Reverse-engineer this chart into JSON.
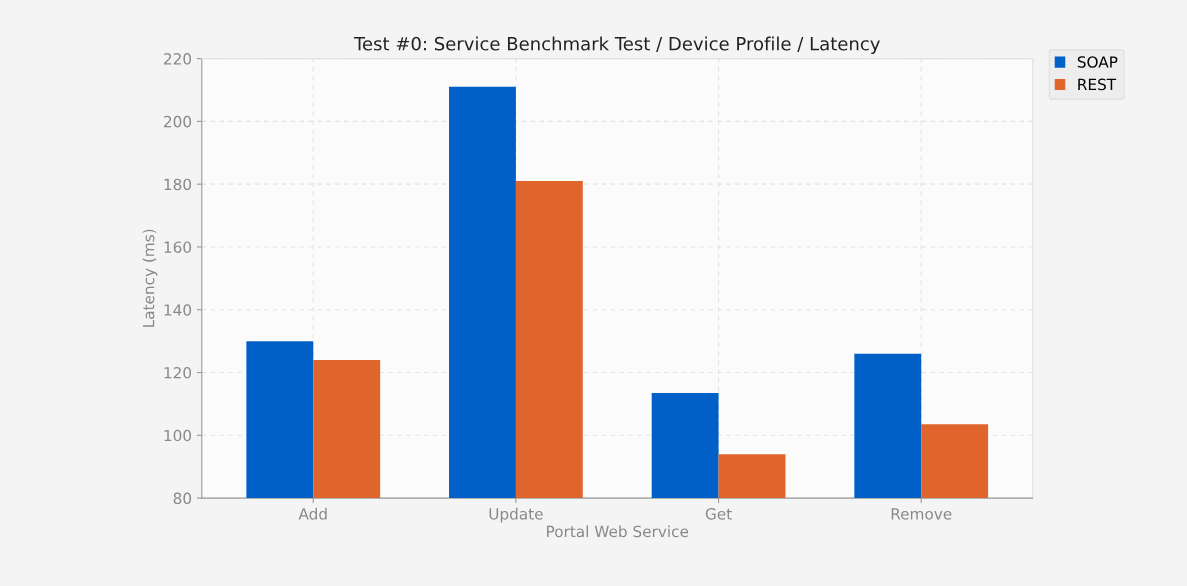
{
  "chart_data": {
    "type": "bar",
    "title": "Test #0: Service Benchmark Test / Device Profile / Latency",
    "xlabel": "Portal Web Service",
    "ylabel": "Latency (ms)",
    "categories": [
      "Add",
      "Update",
      "Get",
      "Remove"
    ],
    "series": [
      {
        "name": "SOAP",
        "color": "#0060c8",
        "values": [
          130,
          211,
          113.5,
          126
        ]
      },
      {
        "name": "REST",
        "color": "#e0652c",
        "values": [
          124,
          181,
          94,
          103.5
        ]
      }
    ],
    "ylim": [
      80,
      220
    ],
    "yticks": [
      80,
      100,
      120,
      140,
      160,
      180,
      200,
      220
    ],
    "grid": true,
    "legend": "top right"
  }
}
